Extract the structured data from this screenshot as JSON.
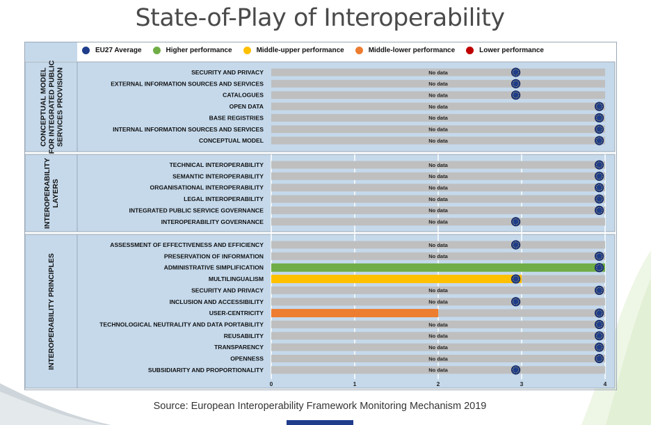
{
  "title": "State-of-Play of Interoperability",
  "source": "Source: European Interoperability Framework Monitoring Mechanism 2019",
  "colors": {
    "eu27": "#1f3d8a",
    "higher": "#70ad47",
    "middle_upper": "#ffc000",
    "middle_lower": "#ed7d31",
    "lower": "#c00000",
    "bar_bg": "#bfbfbf",
    "panel": "#c5d9eb"
  },
  "legend": [
    {
      "label": "EU27 Average",
      "color": "#1f3d8a"
    },
    {
      "label": "Higher performance",
      "color": "#70ad47"
    },
    {
      "label": "Middle-upper performance",
      "color": "#ffc000"
    },
    {
      "label": "Middle-lower performance",
      "color": "#ed7d31"
    },
    {
      "label": "Lower performance",
      "color": "#c00000"
    }
  ],
  "chart_data": {
    "type": "bar",
    "orientation": "horizontal",
    "xlim": [
      0,
      4
    ],
    "xticks": [
      "0",
      "1",
      "2",
      "3",
      "4"
    ],
    "no_data_label": "No data",
    "groups": [
      {
        "label": "CONCEPTUAL MODEL\nFOR INTEGRATED PUBLIC\nSERVICES PROVISION",
        "items": [
          {
            "label": "SECURITY AND PRIVACY",
            "value": null,
            "eu27": 2.93
          },
          {
            "label": "EXTERNAL INFORMATION SOURCES AND SERVICES",
            "value": null,
            "eu27": 2.93
          },
          {
            "label": "CATALOGUES",
            "value": null,
            "eu27": 2.93
          },
          {
            "label": "OPEN DATA",
            "value": null,
            "eu27": 3.93
          },
          {
            "label": "BASE REGISTRIES",
            "value": null,
            "eu27": 3.93
          },
          {
            "label": "INTERNAL INFORMATION SOURCES AND SERVICES",
            "value": null,
            "eu27": 3.93
          },
          {
            "label": "CONCEPTUAL MODEL",
            "value": null,
            "eu27": 3.93
          }
        ]
      },
      {
        "label": "INTEROPERABILITY\nLAYERS",
        "items": [
          {
            "label": "TECHNICAL INTEROPERABILITY",
            "value": null,
            "eu27": 3.93
          },
          {
            "label": "SEMANTIC INTEROPERABILITY",
            "value": null,
            "eu27": 3.93
          },
          {
            "label": "ORGANISATIONAL INTEROPERABILITY",
            "value": null,
            "eu27": 3.93
          },
          {
            "label": "LEGAL INTEROPERABILITY",
            "value": null,
            "eu27": 3.93
          },
          {
            "label": "INTEGRATED PUBLIC SERVICE GOVERNANCE",
            "value": null,
            "eu27": 3.93
          },
          {
            "label": "INTEROPERABILITY GOVERNANCE",
            "value": null,
            "eu27": 2.93
          }
        ]
      },
      {
        "label": "INTEROPERABILITY PRINCIPLES",
        "items": [
          {
            "label": "ASSESSMENT OF EFFECTIVENESS AND EFFICIENCY",
            "value": null,
            "eu27": 2.93
          },
          {
            "label": "PRESERVATION OF INFORMATION",
            "value": null,
            "eu27": 3.93
          },
          {
            "label": "ADMINISTRATIVE SIMPLIFICATION",
            "value": 4,
            "category": "higher",
            "eu27": 3.93
          },
          {
            "label": "MULTILINGUALISM",
            "value": 3,
            "category": "middle_upper",
            "eu27": 2.93
          },
          {
            "label": "SECURITY AND PRIVACY",
            "value": null,
            "eu27": 3.93
          },
          {
            "label": "INCLUSION AND ACCESSIBILITY",
            "value": null,
            "eu27": 2.93
          },
          {
            "label": "USER-CENTRICITY",
            "value": 2,
            "category": "middle_lower",
            "eu27": 3.93
          },
          {
            "label": "TECHNOLOGICAL NEUTRALITY AND DATA PORTABILITY",
            "value": null,
            "eu27": 3.93
          },
          {
            "label": "REUSABILITY",
            "value": null,
            "eu27": 3.93
          },
          {
            "label": "TRANSPARENCY",
            "value": null,
            "eu27": 3.93
          },
          {
            "label": "OPENNESS",
            "value": null,
            "eu27": 3.93
          },
          {
            "label": "SUBSIDIARITY AND PROPORTIONALITY",
            "value": null,
            "eu27": 2.93
          }
        ]
      }
    ]
  }
}
